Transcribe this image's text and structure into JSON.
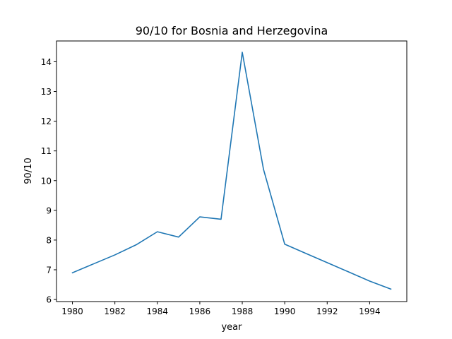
{
  "chart_data": {
    "type": "line",
    "title": "90/10 for Bosnia and Herzegovina",
    "xlabel": "year",
    "ylabel": "90/10",
    "x": [
      1980,
      1981,
      1982,
      1983,
      1984,
      1985,
      1986,
      1987,
      1988,
      1989,
      1990,
      1991,
      1992,
      1993,
      1994,
      1995
    ],
    "series": [
      {
        "values": [
          6.9,
          7.2,
          7.5,
          7.84,
          8.28,
          8.1,
          8.78,
          8.7,
          14.32,
          10.38,
          7.86,
          7.55,
          7.24,
          6.93,
          6.62,
          6.35
        ],
        "color": "#1f77b4"
      }
    ],
    "xlim": [
      1979.25,
      1995.75
    ],
    "ylim": [
      5.93,
      14.7
    ],
    "x_ticks": [
      "1980",
      "1982",
      "1984",
      "1986",
      "1988",
      "1990",
      "1992",
      "1994"
    ],
    "y_ticks": [
      "6",
      "7",
      "8",
      "9",
      "10",
      "11",
      "12",
      "13",
      "14"
    ],
    "grid": false,
    "legend": "none"
  }
}
